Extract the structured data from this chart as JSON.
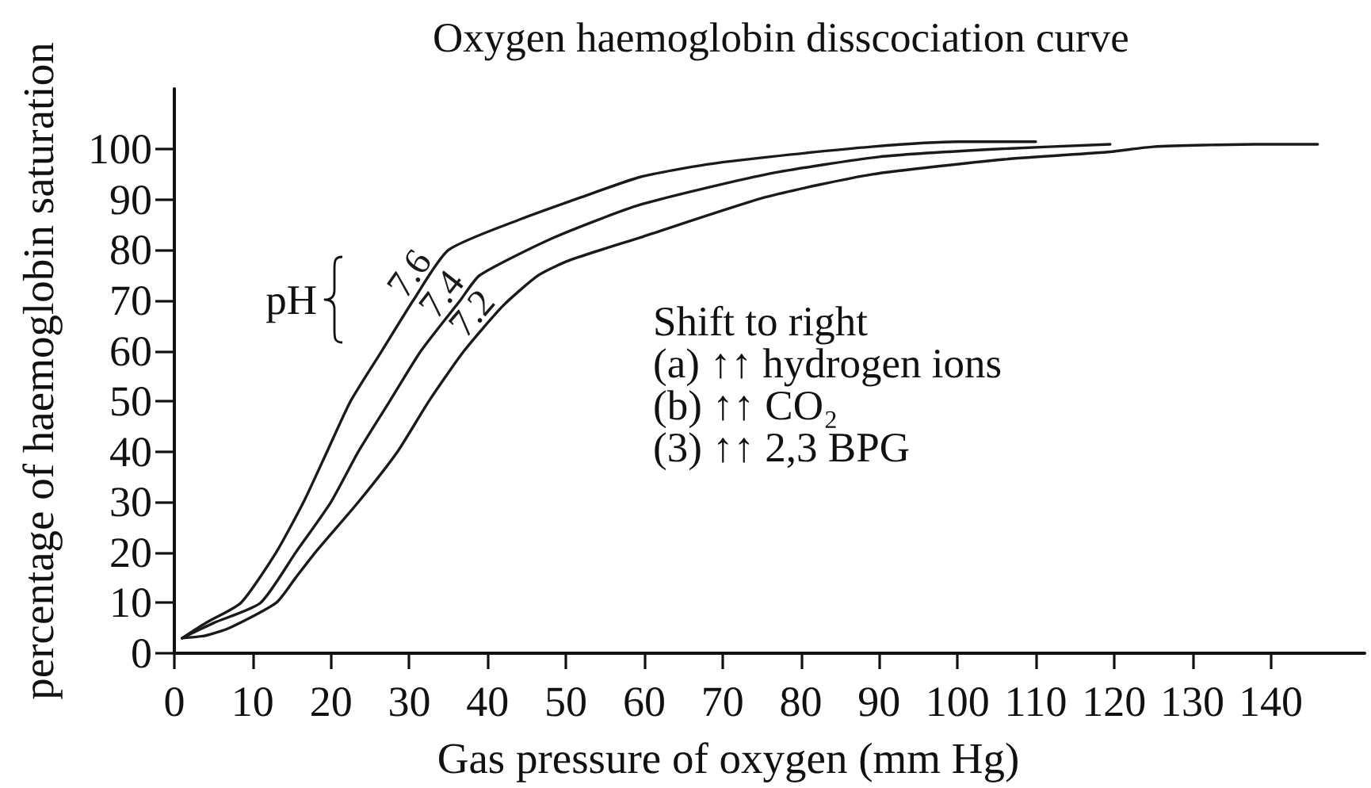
{
  "chart_data": {
    "type": "line",
    "title": "Oxygen haemoglobin disscociation curve",
    "xlabel": "Gas pressure of oxygen (mm Hg)",
    "ylabel": "percentage of haemoglobin saturation",
    "annotations": [
      "pH",
      "Shift to right",
      "(a) ↑↑ hydrogen ions",
      "(b) ↑↑ CO₂",
      "(3) ↑↑ 2,3 BPG"
    ],
    "series": [
      {
        "name": "7.6",
        "color": "#1a1a1a",
        "x": [
          1,
          4,
          8.5,
          13,
          16.5,
          19.5,
          22.5,
          26.5,
          30.5,
          35,
          44,
          52,
          59.5,
          68,
          76,
          89,
          100,
          110
        ],
        "values": [
          3,
          6,
          10,
          20,
          30,
          40,
          50,
          60,
          70,
          80,
          86,
          90.5,
          94.5,
          97,
          98.5,
          100.5,
          101.5,
          101.5
        ]
      },
      {
        "name": "7.4",
        "color": "#1a1a1a",
        "x": [
          1,
          5,
          11,
          15.5,
          20,
          23.5,
          27.5,
          31.5,
          36.5,
          39,
          48.5,
          59.5,
          75.5,
          90,
          104.5,
          119.5
        ],
        "values": [
          3,
          6,
          10,
          20,
          30,
          40,
          50,
          60,
          70,
          75,
          82.5,
          89,
          95,
          98.5,
          100,
          101
        ]
      },
      {
        "name": "7.2",
        "color": "#1a1a1a",
        "x": [
          1,
          4,
          7,
          13,
          15.5,
          18,
          23.5,
          28.5,
          32.5,
          37,
          42,
          46.5,
          50.5,
          59.5,
          75.5,
          89,
          106,
          119.5,
          125,
          138,
          146
        ],
        "values": [
          3,
          3.5,
          5,
          10,
          15,
          20,
          30,
          40,
          50,
          60,
          69,
          75,
          78,
          82.5,
          90.5,
          95,
          98,
          99.5,
          100.5,
          101,
          101
        ]
      }
    ],
    "xlim": [
      0,
      152
    ],
    "ylim": [
      0,
      112
    ],
    "xticks": [
      0,
      10,
      20,
      30,
      40,
      50,
      60,
      70,
      80,
      90,
      100,
      110,
      120,
      130,
      140
    ],
    "yticks": [
      0,
      10,
      20,
      30,
      40,
      50,
      60,
      70,
      80,
      90,
      100
    ],
    "marker": "none",
    "line_style": "solid"
  }
}
